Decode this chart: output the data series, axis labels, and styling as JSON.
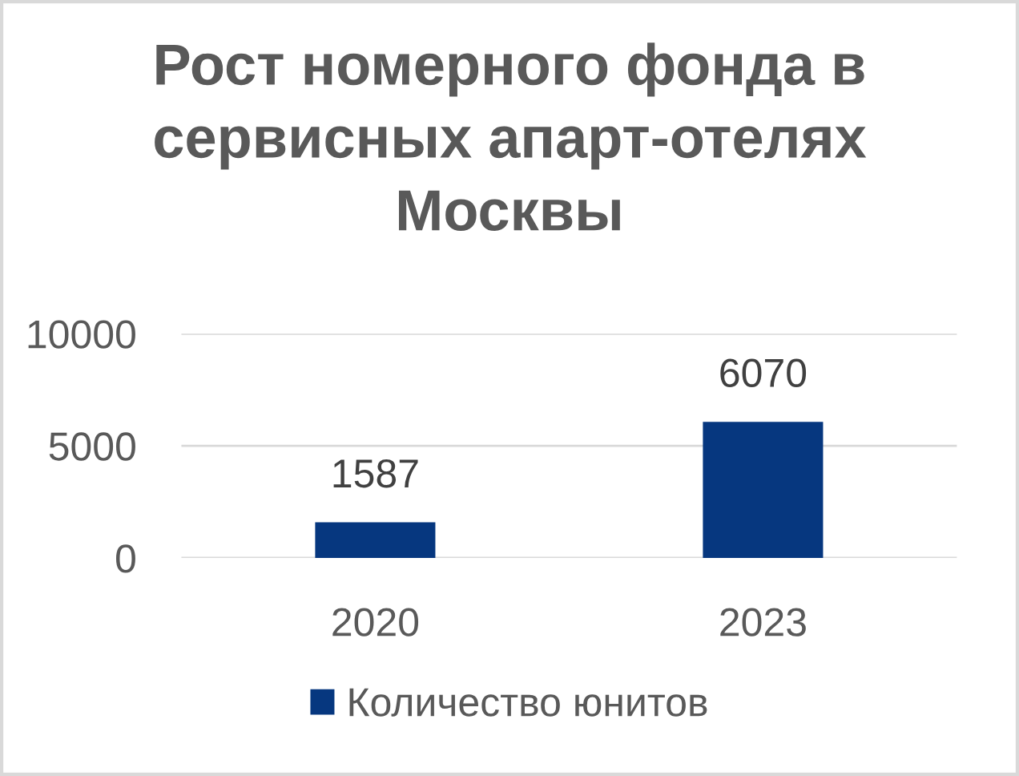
{
  "chart_data": {
    "type": "bar",
    "title": "Рост номерного фонда в сервисных апарт-отелях Москвы",
    "categories": [
      "2020",
      "2023"
    ],
    "series": [
      {
        "name": "Количество юнитов",
        "color": "#06377f",
        "values": [
          1587,
          6070
        ]
      }
    ],
    "ylim": [
      0,
      10000
    ],
    "yticks": [
      0,
      5000,
      10000
    ],
    "grid": "y",
    "legend": "bottom",
    "data_labels": true
  }
}
